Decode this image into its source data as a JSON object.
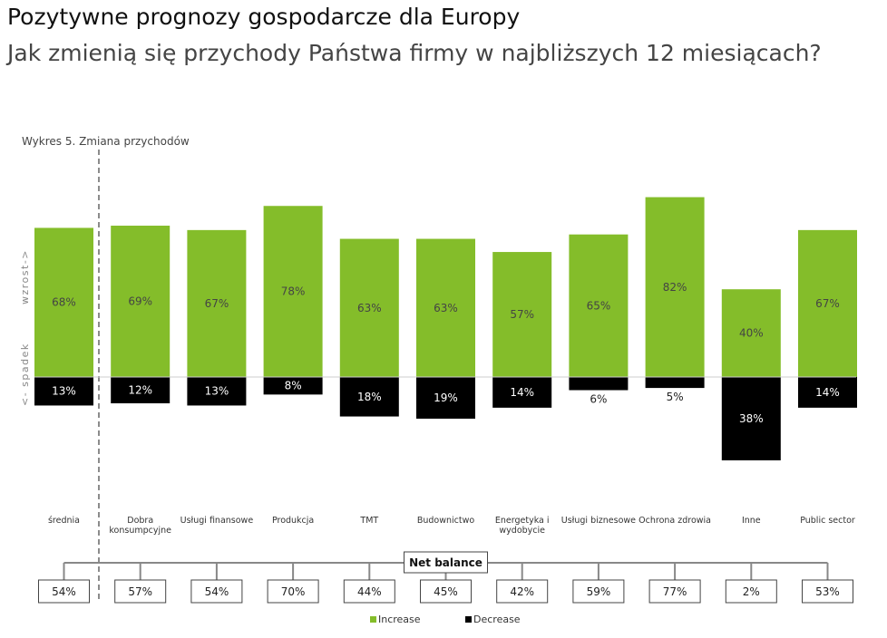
{
  "title": "Pozytywne prognozy gospodarcze dla Europy",
  "subtitle": "Jak zmienią się przychody Państwa firmy w najbliższych 12 miesiącach?",
  "chart_data": {
    "type": "bar",
    "caption": "Wykres 5. Zmiana przychodów",
    "ylabel_up": "wzrost->",
    "ylabel_down": "<- spadek",
    "categories": [
      "średnia",
      "Dobra konsumpcyjne",
      "Usługi finansowe",
      "Produkcja",
      "TMT",
      "Budownictwo",
      "Energetyka i wydobycie",
      "Usługi biznesowe",
      "Ochrona zdrowia",
      "Inne",
      "Public sector"
    ],
    "series": [
      {
        "name": "Increase",
        "color": "#84bd2a",
        "values": [
          68,
          69,
          67,
          78,
          63,
          63,
          57,
          65,
          82,
          40,
          67
        ]
      },
      {
        "name": "Decrease",
        "color": "#000000",
        "values": [
          13,
          12,
          13,
          8,
          18,
          19,
          14,
          6,
          5,
          38,
          14
        ]
      }
    ],
    "net_balance_label": "Net balance",
    "net_balance": [
      54,
      57,
      54,
      70,
      44,
      45,
      42,
      59,
      77,
      2,
      53
    ],
    "unit": "%",
    "legend": [
      "Increase",
      "Decrease"
    ],
    "legend_position": "bottom-center"
  }
}
